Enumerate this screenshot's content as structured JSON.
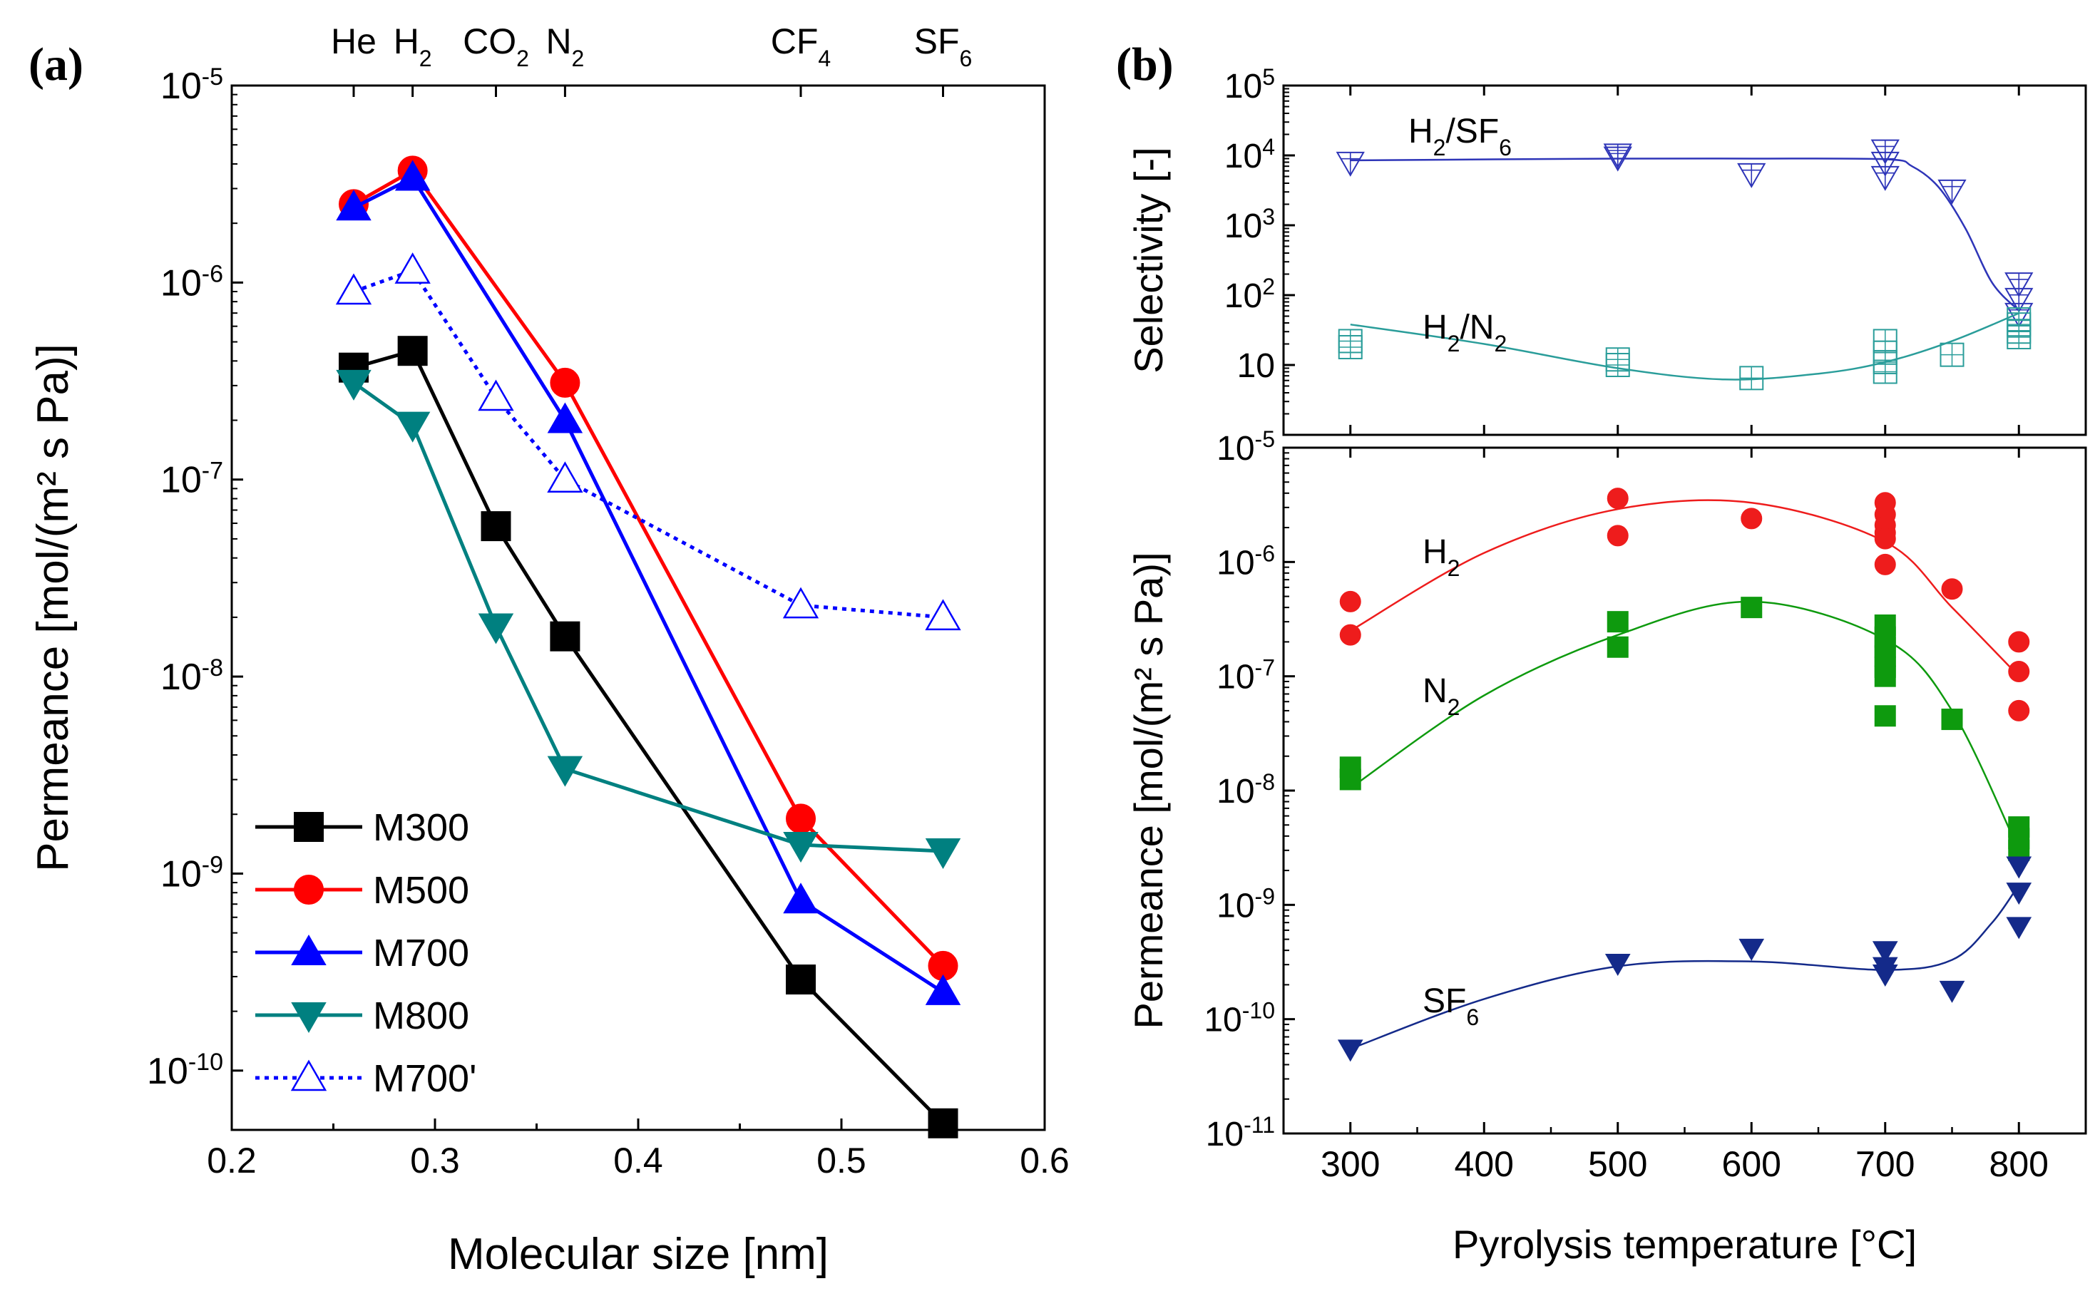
{
  "figure": {
    "panel_a_label": "(a)",
    "panel_b_label": "(b)"
  },
  "chart_data": [
    {
      "id": "a",
      "type": "line",
      "yscale": "log",
      "xlabel": "Molecular size [nm]",
      "ylabel": "Permeance [mol/(m² s Pa)]",
      "xlim": [
        0.2,
        0.6
      ],
      "ylim": [
        5e-11,
        1e-05
      ],
      "xticks": [
        0.2,
        0.3,
        0.4,
        0.5,
        0.6
      ],
      "xtick_labels": [
        "0.2",
        "0.3",
        "0.4",
        "0.5",
        "0.6"
      ],
      "ytick_exponents": [
        -10,
        -9,
        -8,
        -7,
        -6,
        -5
      ],
      "top_axis": [
        {
          "x": 0.26,
          "label": "He",
          "sub": ""
        },
        {
          "x": 0.289,
          "label": "H",
          "sub": "2"
        },
        {
          "x": 0.33,
          "label": "CO",
          "sub": "2"
        },
        {
          "x": 0.364,
          "label": "N",
          "sub": "2"
        },
        {
          "x": 0.48,
          "label": "CF",
          "sub": "4"
        },
        {
          "x": 0.55,
          "label": "SF",
          "sub": "6"
        }
      ],
      "series": [
        {
          "name": "M300",
          "color": "#000000",
          "marker": "square",
          "filled": true,
          "dash": false,
          "x": [
            0.26,
            0.289,
            0.33,
            0.364,
            0.48,
            0.55
          ],
          "y": [
            3.7e-07,
            4.5e-07,
            5.8e-08,
            1.6e-08,
            2.9e-10,
            5.4e-11
          ]
        },
        {
          "name": "M500",
          "color": "#ff0000",
          "marker": "circle",
          "filled": true,
          "dash": false,
          "x": [
            0.26,
            0.289,
            0.364,
            0.48,
            0.55
          ],
          "y": [
            2.5e-06,
            3.7e-06,
            3.1e-07,
            1.9e-09,
            3.4e-10
          ]
        },
        {
          "name": "M700",
          "color": "#0000ff",
          "marker": "triangle-up",
          "filled": true,
          "dash": false,
          "x": [
            0.26,
            0.289,
            0.364,
            0.48,
            0.55
          ],
          "y": [
            2.4e-06,
            3.4e-06,
            2e-07,
            7.3e-10,
            2.5e-10
          ]
        },
        {
          "name": "M800",
          "color": "#008080",
          "marker": "triangle-down",
          "filled": true,
          "dash": false,
          "x": [
            0.26,
            0.289,
            0.33,
            0.364,
            0.48,
            0.55
          ],
          "y": [
            3.1e-07,
            1.9e-07,
            1.8e-08,
            3.4e-09,
            1.4e-09,
            1.3e-09
          ]
        },
        {
          "name": "M700'",
          "color": "#0000ff",
          "marker": "triangle-up",
          "filled": false,
          "dash": true,
          "x": [
            0.26,
            0.289,
            0.33,
            0.364,
            0.48,
            0.55
          ],
          "y": [
            9e-07,
            1.15e-06,
            2.6e-07,
            1e-07,
            2.3e-08,
            2e-08
          ]
        }
      ]
    },
    {
      "id": "b-top",
      "type": "scatter",
      "yscale": "log",
      "ylabel": "Selectivity [-]",
      "xlim": [
        250,
        850
      ],
      "ylim": [
        1,
        100000.0
      ],
      "ytick_labels": [
        {
          "v": 100000.0,
          "base": "10",
          "exp": "5"
        },
        {
          "v": 10000.0,
          "base": "10",
          "exp": "4"
        },
        {
          "v": 1000.0,
          "base": "10",
          "exp": "3"
        },
        {
          "v": 100.0,
          "base": "10",
          "exp": "2"
        },
        {
          "v": 10,
          "base": "10",
          "exp": ""
        }
      ],
      "series": [
        {
          "name": "H2/SF6",
          "label": "H",
          "label_sub1": "2",
          "label_mid": "/SF",
          "label_sub2": "6",
          "color": "#2e35b8",
          "marker": "triangle-down-open",
          "x": [
            300,
            500,
            500,
            600,
            700,
            700,
            700,
            750,
            800,
            800,
            800
          ],
          "y": [
            8000,
            10500,
            9500,
            5500,
            12000,
            8000,
            5000,
            3200,
            150,
            90,
            55
          ],
          "fit_x": [
            300,
            500,
            600,
            700,
            720,
            740,
            760,
            780,
            800
          ],
          "fit_y": [
            8500,
            9000,
            9000,
            8800,
            7000,
            3500,
            900,
            150,
            60
          ]
        },
        {
          "name": "H2/N2",
          "label": "H",
          "label_sub1": "2",
          "label_mid": "/N",
          "label_sub2": "2",
          "color": "#2a9d9a",
          "marker": "square-grid-open",
          "x": [
            300,
            300,
            500,
            500,
            600,
            700,
            700,
            700,
            700,
            750,
            800,
            800,
            800,
            800
          ],
          "y": [
            22,
            18,
            12,
            10,
            6.5,
            22,
            15,
            11,
            8,
            14,
            45,
            38,
            30,
            25
          ],
          "fit_x": [
            300,
            400,
            500,
            580,
            650,
            700,
            750,
            800
          ],
          "fit_y": [
            38,
            20,
            9,
            6.2,
            7.5,
            11,
            22,
            55
          ]
        }
      ]
    },
    {
      "id": "b-bottom",
      "type": "scatter",
      "yscale": "log",
      "xlabel": "Pyrolysis temperature [°C]",
      "ylabel": "Permeance [mol/(m² s Pa)]",
      "xlim": [
        250,
        850
      ],
      "ylim": [
        1e-11,
        1e-05
      ],
      "xticks": [
        300,
        400,
        500,
        600,
        700,
        800
      ],
      "xtick_labels": [
        "300",
        "400",
        "500",
        "600",
        "700",
        "800"
      ],
      "ytick_exponents": [
        -11,
        -10,
        -9,
        -8,
        -7,
        -6,
        -5
      ],
      "series": [
        {
          "name": "H2",
          "label": "H",
          "label_sub": "2",
          "color": "#ee1c1c",
          "marker": "circle",
          "x": [
            300,
            300,
            500,
            500,
            600,
            700,
            700,
            700,
            700,
            700,
            700,
            750,
            800,
            800,
            800
          ],
          "y": [
            4.5e-07,
            2.3e-07,
            3.6e-06,
            1.7e-06,
            2.4e-06,
            3.3e-06,
            2.6e-06,
            2.1e-06,
            1.8e-06,
            1.6e-06,
            9.5e-07,
            5.8e-07,
            2e-07,
            1.1e-07,
            5e-08
          ],
          "fit_x": [
            300,
            400,
            500,
            600,
            700,
            750,
            800
          ],
          "fit_y": [
            2.5e-07,
            1.2e-06,
            2.9e-06,
            3.3e-06,
            1.5e-06,
            4e-07,
            1e-07
          ]
        },
        {
          "name": "N2",
          "label": "N",
          "label_sub": "2",
          "color": "#0e9a0e",
          "marker": "square",
          "x": [
            300,
            300,
            500,
            500,
            600,
            700,
            700,
            700,
            700,
            700,
            700,
            700,
            750,
            800,
            800,
            800
          ],
          "y": [
            1.6e-08,
            1.25e-08,
            3e-07,
            1.8e-07,
            4e-07,
            2.8e-07,
            2.2e-07,
            1.8e-07,
            1.5e-07,
            1.2e-07,
            1e-07,
            4.5e-08,
            4.2e-08,
            4.8e-09,
            3.8e-09,
            3e-09
          ],
          "fit_x": [
            300,
            400,
            500,
            600,
            700,
            750,
            800
          ],
          "fit_y": [
            1.05e-08,
            6.8e-08,
            2.3e-07,
            4.5e-07,
            2.1e-07,
            5e-08,
            3e-09
          ]
        },
        {
          "name": "SF6",
          "label": "SF",
          "label_sub": "6",
          "color": "#142a8a",
          "marker": "triangle-down",
          "x": [
            300,
            500,
            600,
            700,
            700,
            700,
            750,
            800,
            800,
            800
          ],
          "y": [
            5.5e-11,
            3.1e-10,
            4.2e-10,
            4e-10,
            2.9e-10,
            2.5e-10,
            1.8e-10,
            2.2e-09,
            1.3e-09,
            6.5e-10
          ],
          "fit_x": [
            300,
            400,
            500,
            600,
            700,
            750,
            780,
            800
          ],
          "fit_y": [
            5.5e-11,
            1.5e-10,
            2.9e-10,
            3.2e-10,
            2.7e-10,
            3.3e-10,
            7e-10,
            1.5e-09
          ]
        }
      ]
    }
  ]
}
